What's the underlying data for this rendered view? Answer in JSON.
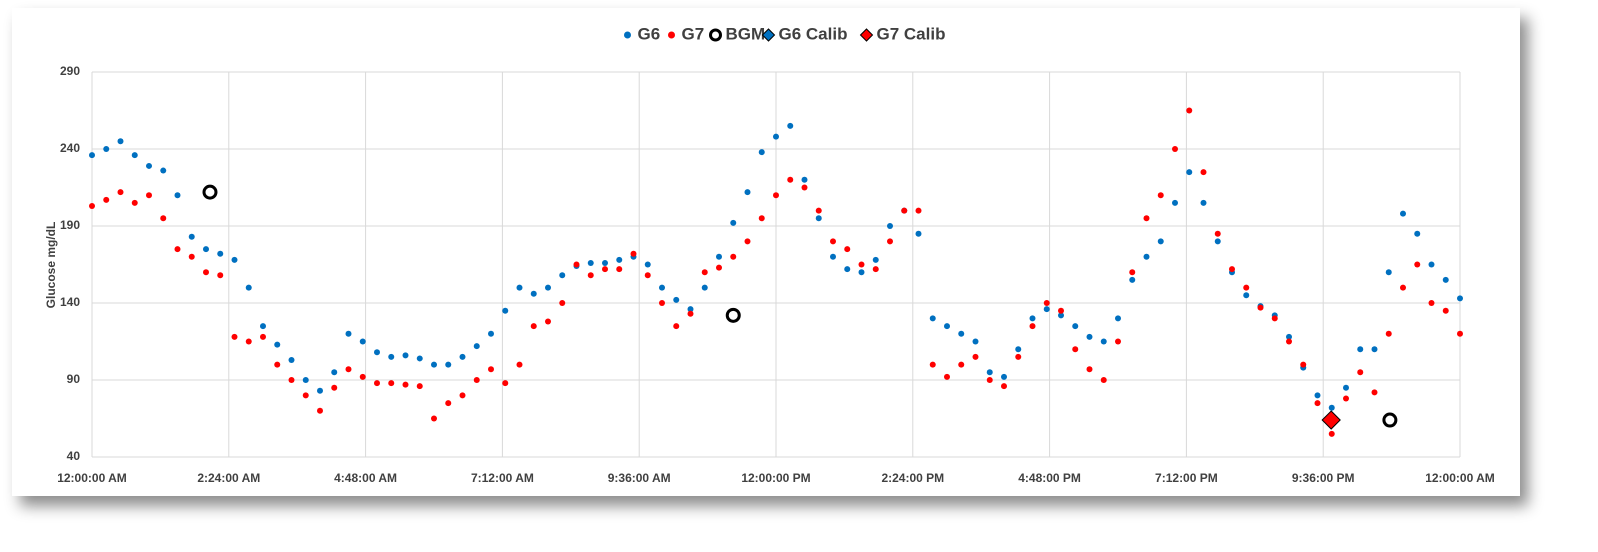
{
  "chart_data": {
    "type": "scatter",
    "y_label": "Glucose mg/dL",
    "xlim": [
      0,
      24
    ],
    "xticks": [
      {
        "value": 0,
        "label": "12:00:00 AM"
      },
      {
        "value": 2.4,
        "label": "2:24:00 AM"
      },
      {
        "value": 4.8,
        "label": "4:48:00 AM"
      },
      {
        "value": 7.2,
        "label": "7:12:00 AM"
      },
      {
        "value": 9.6,
        "label": "9:36:00 AM"
      },
      {
        "value": 12,
        "label": "12:00:00 PM"
      },
      {
        "value": 14.4,
        "label": "2:24:00 PM"
      },
      {
        "value": 16.8,
        "label": "4:48:00 PM"
      },
      {
        "value": 19.2,
        "label": "7:12:00 PM"
      },
      {
        "value": 21.6,
        "label": "9:36:00 PM"
      },
      {
        "value": 24,
        "label": "12:00:00 AM"
      }
    ],
    "ylim": [
      40,
      290
    ],
    "yticks": [
      40,
      90,
      140,
      190,
      240,
      290
    ],
    "grid": true,
    "legend": "top",
    "series": [
      {
        "name": "G6",
        "color": "#0070c0",
        "marker": "dot",
        "x": [
          0,
          0.25,
          0.5,
          0.75,
          1,
          1.25,
          1.5,
          1.75,
          2,
          2.25,
          2.5,
          2.75,
          3,
          3.25,
          3.5,
          3.75,
          4,
          4.25,
          4.5,
          4.75,
          5,
          5.25,
          5.5,
          5.75,
          6,
          6.25,
          6.5,
          6.75,
          7,
          7.25,
          7.5,
          7.75,
          8,
          8.25,
          8.5,
          8.75,
          9,
          9.25,
          9.5,
          9.75,
          10,
          10.25,
          10.5,
          10.75,
          11,
          11.25,
          11.5,
          11.75,
          12,
          12.25,
          12.5,
          12.75,
          13,
          13.25,
          13.5,
          13.75,
          14,
          14.25,
          14.5,
          14.75,
          15,
          15.25,
          15.5,
          15.75,
          16,
          16.25,
          16.5,
          16.75,
          17,
          17.25,
          17.5,
          17.75,
          18,
          18.25,
          18.5,
          18.75,
          19,
          19.25,
          19.5,
          19.75,
          20,
          20.25,
          20.5,
          20.75,
          21,
          21.25,
          21.5,
          21.75,
          22,
          22.25,
          22.5,
          22.75,
          23,
          23.25,
          23.5,
          23.75,
          24
        ],
        "values": [
          236,
          240,
          245,
          236,
          229,
          226,
          210,
          183,
          175,
          172,
          168,
          150,
          125,
          113,
          103,
          90,
          83,
          95,
          120,
          115,
          108,
          105,
          106,
          104,
          100,
          100,
          105,
          112,
          120,
          135,
          150,
          146,
          150,
          158,
          164,
          166,
          166,
          168,
          170,
          165,
          150,
          142,
          136,
          150,
          170,
          192,
          212,
          238,
          248,
          255,
          220,
          195,
          170,
          162,
          160,
          168,
          190,
          200,
          185,
          130,
          125,
          120,
          115,
          95,
          92,
          110,
          130,
          136,
          132,
          125,
          118,
          115,
          130,
          155,
          170,
          180,
          205,
          225,
          205,
          180,
          160,
          145,
          138,
          132,
          118,
          98,
          80,
          72,
          85,
          110,
          110,
          160,
          198,
          185,
          165,
          155,
          143
        ]
      },
      {
        "name": "G7",
        "color": "#ff0000",
        "marker": "dot",
        "x": [
          0,
          0.25,
          0.5,
          0.75,
          1,
          1.25,
          1.5,
          1.75,
          2,
          2.25,
          2.5,
          2.75,
          3,
          3.25,
          3.5,
          3.75,
          4,
          4.25,
          4.5,
          4.75,
          5,
          5.25,
          5.5,
          5.75,
          6,
          6.25,
          6.5,
          6.75,
          7,
          7.25,
          7.5,
          7.75,
          8,
          8.25,
          8.5,
          8.75,
          9,
          9.25,
          9.5,
          9.75,
          10,
          10.25,
          10.5,
          10.75,
          11,
          11.25,
          11.5,
          11.75,
          12,
          12.25,
          12.5,
          12.75,
          13,
          13.25,
          13.5,
          13.75,
          14,
          14.25,
          14.5,
          14.75,
          15,
          15.25,
          15.5,
          15.75,
          16,
          16.25,
          16.5,
          16.75,
          17,
          17.25,
          17.5,
          17.75,
          18,
          18.25,
          18.5,
          18.75,
          19,
          19.25,
          19.5,
          19.75,
          20,
          20.25,
          20.5,
          20.75,
          21,
          21.25,
          21.5,
          21.75,
          22,
          22.25,
          22.5,
          22.75,
          23,
          23.25,
          23.5,
          23.75,
          24
        ],
        "values": [
          203,
          207,
          212,
          205,
          210,
          195,
          175,
          170,
          160,
          158,
          118,
          115,
          118,
          100,
          90,
          80,
          70,
          85,
          97,
          92,
          88,
          88,
          87,
          86,
          65,
          75,
          80,
          90,
          97,
          88,
          100,
          125,
          128,
          140,
          165,
          158,
          162,
          162,
          172,
          158,
          140,
          125,
          133,
          160,
          163,
          170,
          180,
          195,
          210,
          220,
          215,
          200,
          180,
          175,
          165,
          162,
          180,
          200,
          200,
          100,
          92,
          100,
          105,
          90,
          86,
          105,
          125,
          140,
          135,
          110,
          97,
          90,
          115,
          160,
          195,
          210,
          240,
          265,
          225,
          185,
          162,
          150,
          137,
          130,
          115,
          100,
          75,
          55,
          78,
          95,
          82,
          120,
          150,
          165,
          140,
          135,
          120
        ]
      },
      {
        "name": "BGM",
        "color": "#000000",
        "marker": "circle",
        "x": [
          2.07,
          11.25,
          22.77
        ],
        "values": [
          212,
          132,
          64
        ]
      },
      {
        "name": "G6 Calib",
        "color": "#0070c0",
        "marker": "diamond",
        "x": [],
        "values": []
      },
      {
        "name": "G7 Calib",
        "color": "#ff0000",
        "marker": "diamond",
        "x": [
          21.74
        ],
        "values": [
          64
        ]
      }
    ]
  }
}
